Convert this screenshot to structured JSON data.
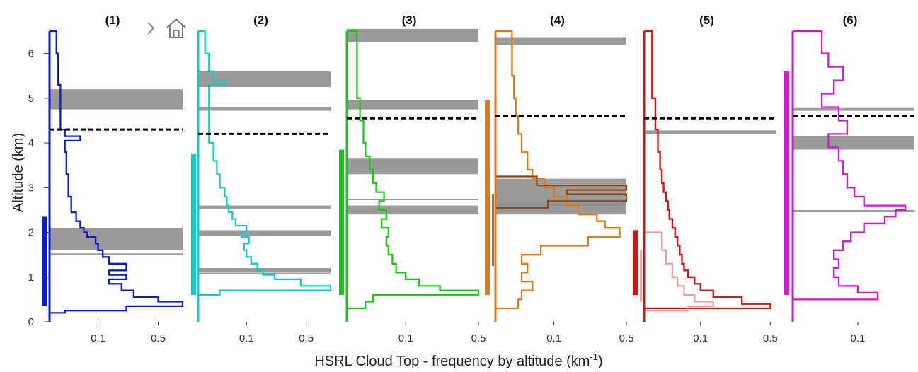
{
  "toolbar": {
    "items": [
      {
        "icon": "chevron-right-icon"
      },
      {
        "icon": "home-icon"
      }
    ]
  },
  "chart_data": {
    "type": "line",
    "ylabel": "Altitude (km)",
    "xlabel_main": "HSRL Cloud Top - frequency by altitude (km",
    "xlabel_sup": "-1",
    "xlabel_tail": ")",
    "ylim": [
      0,
      6.5
    ],
    "yticks": [
      0,
      1,
      2,
      3,
      4,
      5,
      6
    ],
    "ytick_labels": [
      "0",
      "1",
      "2",
      "3",
      "4",
      "5",
      "6"
    ],
    "x_scale": "nonlinear (compressed toward larger values)",
    "grid": false,
    "panels": [
      {
        "title": "(1)",
        "color": "#0a1ec8",
        "xlim": [
          0,
          0.75
        ],
        "xticks": [
          0.1,
          0.5
        ],
        "xtick_labels": [
          "0.1",
          "0.5"
        ],
        "dashed_line_altitude": 4.3,
        "gray_bands": [
          [
            4.75,
            5.2
          ],
          [
            1.6,
            2.1
          ],
          [
            1.5,
            1.53
          ]
        ],
        "vertical_bar": [
          0.35,
          2.35
        ],
        "profiles": [
          {
            "altitude": [
              0.05,
              0.2,
              0.25,
              0.35,
              0.45,
              0.55,
              0.7,
              0.85,
              0.95,
              1.05,
              1.15,
              1.3,
              1.45,
              1.6,
              1.75,
              1.9,
              2.0,
              2.1,
              2.25,
              2.45,
              2.8,
              3.3,
              3.8,
              4.05,
              4.15,
              4.3,
              4.8,
              5.3,
              6.0,
              6.5
            ],
            "frequency": [
              0.0,
              0.01,
              0.25,
              0.75,
              0.5,
              0.3,
              0.22,
              0.15,
              0.25,
              0.15,
              0.25,
              0.15,
              0.12,
              0.1,
              0.09,
              0.06,
              0.05,
              0.04,
              0.03,
              0.02,
              0.015,
              0.012,
              0.01,
              0.04,
              0.01,
              0.005,
              0.005,
              0.003,
              0.002,
              0.0
            ]
          }
        ]
      },
      {
        "title": "(2)",
        "color": "#18c8c8",
        "xlim": [
          0,
          0.75
        ],
        "xticks": [
          0.1,
          0.5
        ],
        "xtick_labels": [
          "0.1",
          "0.5"
        ],
        "dashed_line_altitude": 4.2,
        "gray_bands": [
          [
            5.25,
            5.6
          ],
          [
            4.72,
            4.8
          ],
          [
            2.52,
            2.6
          ],
          [
            1.92,
            2.05
          ],
          [
            1.12,
            1.2
          ],
          [
            1.08,
            1.1
          ]
        ],
        "vertical_bar": [
          0.6,
          3.75
        ],
        "profiles": [
          {
            "altitude": [
              0.0,
              0.6,
              0.7,
              0.8,
              0.95,
              1.05,
              1.15,
              1.3,
              1.45,
              1.6,
              1.75,
              1.9,
              2.0,
              2.15,
              2.3,
              2.45,
              2.6,
              2.8,
              3.0,
              3.3,
              3.6,
              4.0,
              5.3,
              5.4,
              5.6,
              6.0,
              6.5
            ],
            "frequency": [
              0.0,
              0.02,
              0.75,
              0.45,
              0.25,
              0.18,
              0.15,
              0.12,
              0.1,
              0.09,
              0.11,
              0.08,
              0.1,
              0.06,
              0.05,
              0.04,
              0.035,
              0.03,
              0.02,
              0.015,
              0.01,
              0.005,
              0.03,
              0.01,
              0.005,
              0.002,
              0.0
            ]
          }
        ]
      },
      {
        "title": "(3)",
        "color": "#18c818",
        "xlim": [
          0,
          0.5
        ],
        "xticks": [
          0.1,
          0.5
        ],
        "xtick_labels": [
          "0.1",
          "0.5"
        ],
        "dashed_line_altitude": 4.55,
        "gray_bands": [
          [
            6.25,
            6.55
          ],
          [
            4.75,
            4.95
          ],
          [
            3.3,
            3.65
          ],
          [
            2.4,
            2.6
          ],
          [
            2.72,
            2.75
          ]
        ],
        "vertical_bar": [
          0.6,
          3.85
        ],
        "profiles": [
          {
            "altitude": [
              0.05,
              0.3,
              0.45,
              0.6,
              0.7,
              0.8,
              0.95,
              1.1,
              1.3,
              1.5,
              1.7,
              1.9,
              2.1,
              2.3,
              2.5,
              2.7,
              2.9,
              3.1,
              3.4,
              3.7,
              4.0,
              4.5,
              5.0,
              6.5
            ],
            "frequency": [
              0.0,
              0.01,
              0.02,
              0.5,
              0.25,
              0.15,
              0.1,
              0.07,
              0.06,
              0.05,
              0.045,
              0.05,
              0.035,
              0.045,
              0.03,
              0.04,
              0.025,
              0.02,
              0.015,
              0.01,
              0.008,
              0.005,
              0.003,
              0.0
            ]
          }
        ]
      },
      {
        "title": "(4)",
        "color": "#e07818",
        "xlim": [
          0,
          0.5
        ],
        "xticks": [
          0.1,
          0.5
        ],
        "xtick_labels": [
          "0.1",
          "0.5"
        ],
        "dashed_line_altitude": 4.6,
        "gray_bands": [
          [
            6.2,
            6.35
          ],
          [
            2.4,
            3.2
          ],
          [
            2.6,
            2.65
          ]
        ],
        "vertical_bar": [
          0.6,
          4.95
        ],
        "profiles": [
          {
            "altitude": [
              0.1,
              0.3,
              0.5,
              0.7,
              0.9,
              1.1,
              1.3,
              1.5,
              1.7,
              1.9,
              2.1,
              2.25,
              2.4,
              2.6,
              2.8,
              3.0,
              3.2,
              3.4,
              3.8,
              4.2,
              4.6,
              5.0,
              5.5,
              6.5
            ],
            "frequency": [
              0.0,
              0.015,
              0.02,
              0.04,
              0.02,
              0.03,
              0.02,
              0.06,
              0.25,
              0.45,
              0.35,
              0.3,
              0.2,
              0.15,
              0.1,
              0.07,
              0.04,
              0.03,
              0.02,
              0.015,
              0.012,
              0.01,
              0.008,
              0.0
            ]
          },
          {
            "altitude": [
              2.4,
              2.55,
              2.7,
              2.85,
              2.95,
              3.05,
              3.25
            ],
            "frequency": [
              0.0,
              0.08,
              0.5,
              0.15,
              0.5,
              0.05,
              0.0
            ],
            "color": "#8b4513"
          },
          {
            "range": [
              1.25,
              2.85
            ],
            "kind": "secondary_bar",
            "color": "#c86414"
          }
        ]
      },
      {
        "title": "(5)",
        "color": "#d01414",
        "xlim": [
          0,
          0.55
        ],
        "xticks": [
          0.1,
          0.5
        ],
        "xtick_labels": [
          "0.1",
          "0.5"
        ],
        "dashed_line_altitude": 4.55,
        "gray_bands": [
          [
            4.2,
            4.28
          ]
        ],
        "vertical_bar": [
          0.6,
          2.05
        ],
        "profiles": [
          {
            "altitude": [
              0.1,
              0.3,
              0.4,
              0.55,
              0.7,
              0.85,
              1.0,
              1.15,
              1.3,
              1.5,
              1.7,
              1.9,
              2.1,
              2.3,
              2.5,
              2.7,
              2.9,
              3.1,
              3.4,
              3.8,
              4.3,
              5.0,
              6.5
            ],
            "frequency": [
              0.0,
              0.5,
              0.3,
              0.15,
              0.1,
              0.08,
              0.06,
              0.05,
              0.045,
              0.04,
              0.035,
              0.03,
              0.025,
              0.02,
              0.018,
              0.015,
              0.012,
              0.01,
              0.008,
              0.006,
              0.004,
              0.002,
              0.0
            ]
          },
          {
            "altitude": [
              0.0,
              0.25,
              0.35,
              0.45,
              0.6,
              0.8,
              1.0,
              1.3,
              1.6,
              2.0
            ],
            "frequency": [
              0.0,
              0.06,
              0.15,
              0.08,
              0.05,
              0.035,
              0.025,
              0.015,
              0.01,
              0.0
            ],
            "color": "#e8a0a0"
          },
          {
            "range": [
              0.45,
              1.6
            ],
            "kind": "secondary_bar",
            "color": "#f0a8a8"
          }
        ]
      },
      {
        "title": "(6)",
        "color": "#d018d0",
        "xlim": [
          0,
          0.35
        ],
        "xticks": [
          0.1
        ],
        "xtick_labels": [
          "0.1"
        ],
        "dashed_line_altitude": 4.6,
        "gray_bands": [
          [
            3.85,
            4.15
          ],
          [
            4.72,
            4.78
          ],
          [
            2.45,
            2.5
          ]
        ],
        "vertical_bar": [
          0.6,
          5.6
        ],
        "profiles": [
          {
            "altitude": [
              0.3,
              0.5,
              0.65,
              0.8,
              1.0,
              1.2,
              1.4,
              1.6,
              1.8,
              2.0,
              2.2,
              2.35,
              2.5,
              2.6,
              2.8,
              3.0,
              3.3,
              3.6,
              3.9,
              4.2,
              4.5,
              4.8,
              5.1,
              5.4,
              5.7,
              6.0,
              6.5
            ],
            "frequency": [
              0.0,
              0.17,
              0.1,
              0.05,
              0.04,
              0.05,
              0.04,
              0.06,
              0.08,
              0.12,
              0.2,
              0.25,
              0.3,
              0.12,
              0.09,
              0.07,
              0.06,
              0.05,
              0.03,
              0.07,
              0.05,
              0.02,
              0.04,
              0.06,
              0.03,
              0.02,
              0.0
            ]
          }
        ]
      }
    ]
  }
}
